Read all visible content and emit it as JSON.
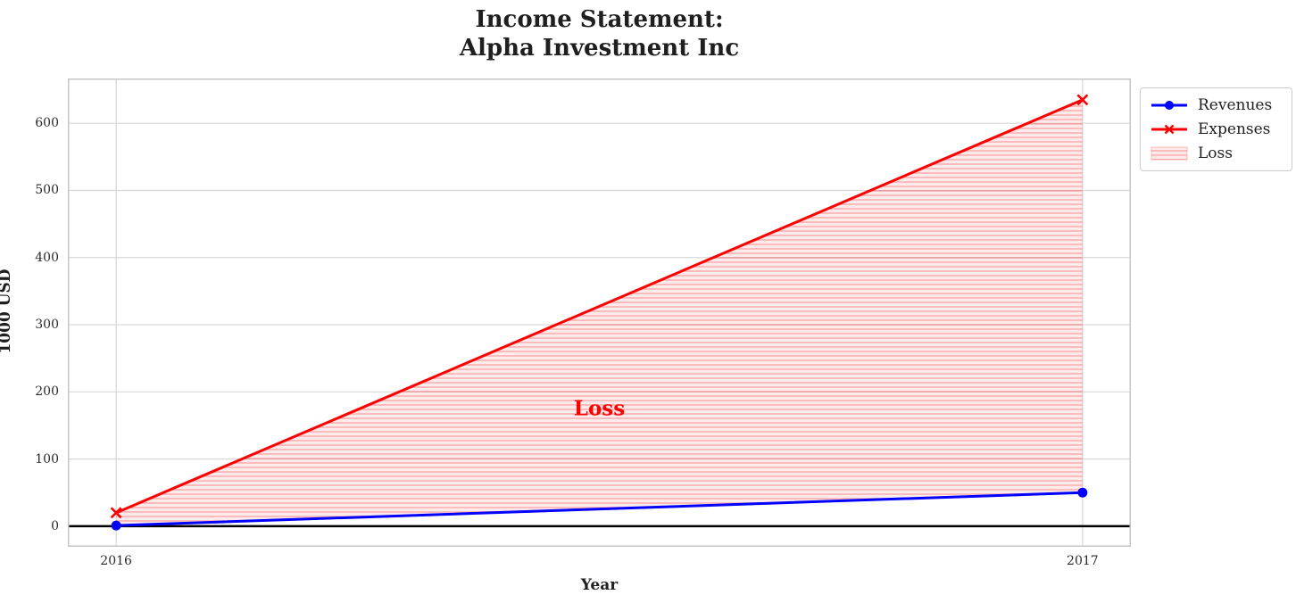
{
  "title": "Income Statement:\nAlpha Investment Inc",
  "chart_data": {
    "type": "line",
    "x": [
      2016,
      2017
    ],
    "series": [
      {
        "name": "Revenues",
        "values": [
          1,
          50
        ],
        "color": "#0000ff",
        "marker": "circle",
        "linewidth": 3
      },
      {
        "name": "Expenses",
        "values": [
          20,
          635
        ],
        "color": "#ff0000",
        "marker": "x",
        "linewidth": 3
      }
    ],
    "fill_between": {
      "label": "Loss",
      "between": [
        "Revenues",
        "Expenses"
      ],
      "face_color": "rgba(255,0,0,0.08)",
      "hatch_color": "rgba(255,0,0,0.20)",
      "hatch": "horizontal-lines"
    },
    "annotation": {
      "text": "Loss",
      "x": 2016.5,
      "y": 175,
      "color": "#ff0000"
    },
    "xlabel": "Year",
    "ylabel": "1000 USD",
    "xticks": [
      2016,
      2017
    ],
    "yticks": [
      0,
      100,
      200,
      300,
      400,
      500,
      600
    ],
    "xlim": [
      2015.95,
      2017.05
    ],
    "ylim": [
      -30.7,
      666.7
    ],
    "grid": true,
    "grid_color": "#d8d8d8",
    "border_color": "#c6c6c6",
    "zero_line": {
      "y": 0,
      "color": "#000000",
      "width": 2.5
    },
    "legend": {
      "position": "outside-upper-right",
      "entries": [
        {
          "label": "Revenues",
          "kind": "line",
          "marker": "circle",
          "color": "#0000ff"
        },
        {
          "label": "Expenses",
          "kind": "line",
          "marker": "x",
          "color": "#ff0000"
        },
        {
          "label": "Loss",
          "kind": "patch",
          "color": "rgba(255,0,0,0.15)"
        }
      ]
    }
  }
}
